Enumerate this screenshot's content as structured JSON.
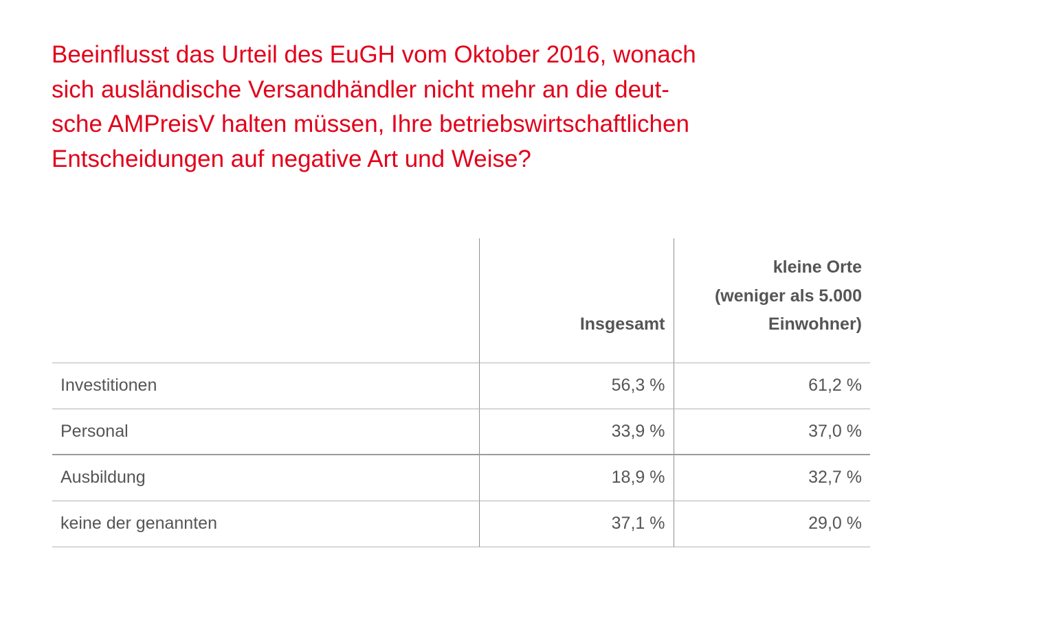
{
  "chart_data": {
    "type": "table",
    "title_lines": [
      "Beeinflusst das Urteil des EuGH vom Oktober 2016, wonach",
      "sich ausländische Versandhändler nicht mehr an die deut-",
      "sche AMPreisV halten müssen, Ihre betriebswirtschaftlichen",
      "Entscheidungen auf negative Art und Weise?"
    ],
    "columns": [
      {
        "label_lines": [
          "Insgesamt"
        ]
      },
      {
        "label_lines": [
          "kleine Orte",
          "(weniger als 5.000",
          "Einwohner)"
        ]
      }
    ],
    "rows": [
      {
        "label": "Investitionen",
        "values": [
          "56,3 %",
          "61,2 %"
        ]
      },
      {
        "label": "Personal",
        "values": [
          "33,9 %",
          "37,0 %"
        ]
      },
      {
        "label": "Ausbildung",
        "values": [
          "18,9 %",
          "32,7 %"
        ]
      },
      {
        "label": "keine der genannten",
        "values": [
          "37,1 %",
          "29,0 %"
        ]
      }
    ]
  },
  "colors": {
    "title": "#e2001a",
    "text": "#555555",
    "rule": "#b3b3b3"
  }
}
